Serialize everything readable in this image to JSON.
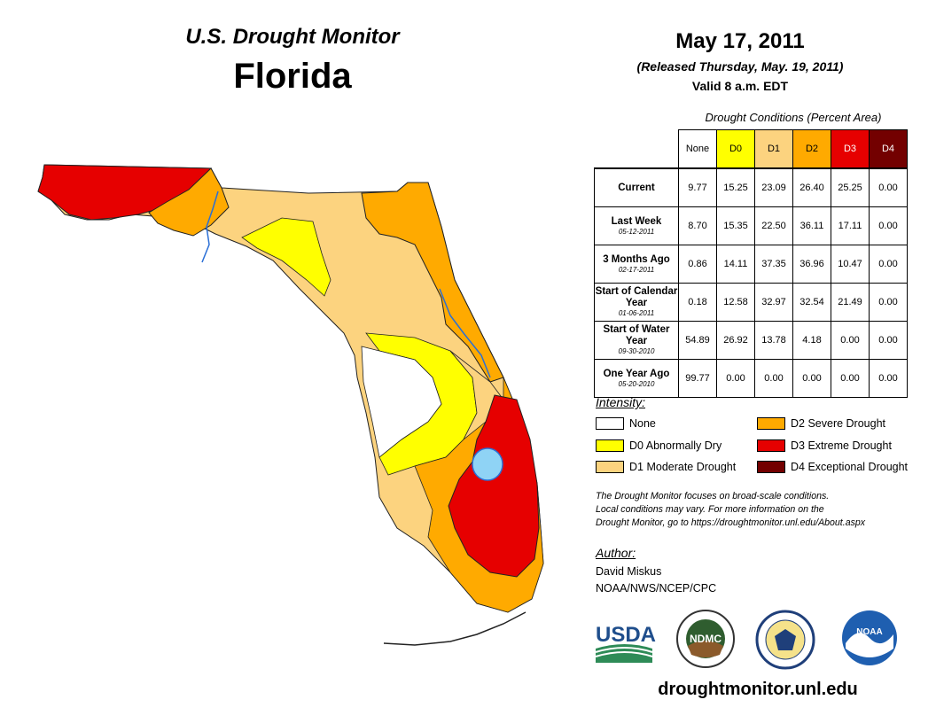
{
  "header": {
    "title": "U.S. Drought Monitor",
    "state": "Florida",
    "date": "May 17, 2011",
    "released": "(Released Thursday, May. 19, 2011)",
    "valid": "Valid 8 a.m. EDT"
  },
  "table": {
    "caption": "Drought Conditions (Percent Area)",
    "columns": [
      "None",
      "D0",
      "D1",
      "D2",
      "D3",
      "D4"
    ],
    "column_colors": [
      "#ffffff",
      "#ffff00",
      "#fcd37f",
      "#ffaa00",
      "#e60000",
      "#730000"
    ],
    "rows": [
      {
        "label": "Current",
        "date": "",
        "values": [
          "9.77",
          "15.25",
          "23.09",
          "26.40",
          "25.25",
          "0.00"
        ]
      },
      {
        "label": "Last Week",
        "date": "05-12-2011",
        "values": [
          "8.70",
          "15.35",
          "22.50",
          "36.11",
          "17.11",
          "0.00"
        ]
      },
      {
        "label": "3 Months Ago",
        "date": "02-17-2011",
        "values": [
          "0.86",
          "14.11",
          "37.35",
          "36.96",
          "10.47",
          "0.00"
        ]
      },
      {
        "label": "Start of Calendar Year",
        "date": "01-06-2011",
        "values": [
          "0.18",
          "12.58",
          "32.97",
          "32.54",
          "21.49",
          "0.00"
        ]
      },
      {
        "label": "Start of Water Year",
        "date": "09-30-2010",
        "values": [
          "54.89",
          "26.92",
          "13.78",
          "4.18",
          "0.00",
          "0.00"
        ]
      },
      {
        "label": "One Year Ago",
        "date": "05-20-2010",
        "values": [
          "99.77",
          "0.00",
          "0.00",
          "0.00",
          "0.00",
          "0.00"
        ]
      }
    ]
  },
  "legend": {
    "heading": "Intensity:",
    "items": [
      {
        "label": "None",
        "color": "#ffffff"
      },
      {
        "label": "D0 Abnormally Dry",
        "color": "#ffff00"
      },
      {
        "label": "D1 Moderate Drought",
        "color": "#fcd37f"
      },
      {
        "label": "D2 Severe Drought",
        "color": "#ffaa00"
      },
      {
        "label": "D3 Extreme Drought",
        "color": "#e60000"
      },
      {
        "label": "D4 Exceptional Drought",
        "color": "#730000"
      }
    ]
  },
  "note": {
    "line1": "The Drought Monitor focuses on broad-scale conditions.",
    "line2": "Local conditions may vary. For more information on the",
    "line3": "Drought Monitor, go to https://droughtmonitor.unl.edu/About.aspx"
  },
  "author": {
    "heading": "Author:",
    "name": "David Miskus",
    "org": "NOAA/NWS/NCEP/CPC"
  },
  "logos": {
    "usda": "USDA",
    "ndmc": "NDMC",
    "noaa": "NOAA"
  },
  "footer": {
    "url": "droughtmonitor.unl.edu"
  },
  "map_colors": {
    "d0": "#ffff00",
    "d1": "#fcd37f",
    "d2": "#ffaa00",
    "d3": "#e60000",
    "water": "#8fd3f5"
  }
}
